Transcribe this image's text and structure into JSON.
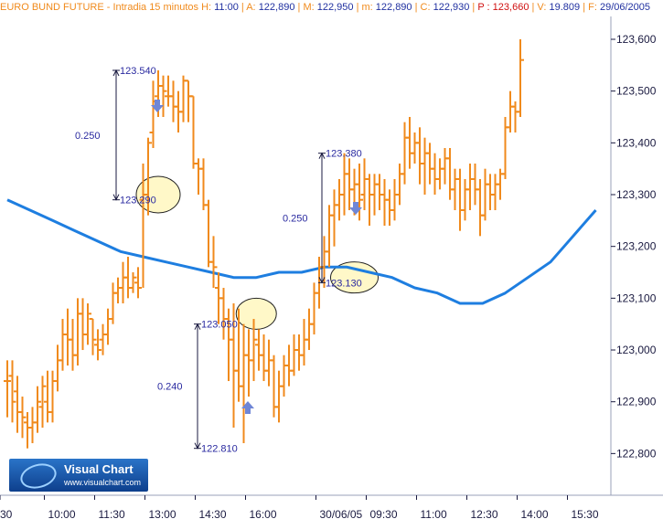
{
  "header": {
    "instrument": "EURO BUND FUTURE - Intradia 15 minutos",
    "h_label": "H:",
    "h_value": "11:00",
    "a_label": "A:",
    "a_value": "122,890",
    "m_label": "M:",
    "m_value": "122,950",
    "min_label": "m:",
    "min_value": "122,890",
    "c_label": "C:",
    "c_value": "122,930",
    "p_label": "P :",
    "p_value": "123,660",
    "v_label": "V:",
    "v_value": "19.809",
    "f_label": "F:",
    "f_value": "29/06/2005"
  },
  "logo": {
    "title": "Visual Chart",
    "url": "www.visualchart.com"
  },
  "colors": {
    "bars": "#f08a1c",
    "average": "#1e7ee0",
    "annotation": "#2a2aa0",
    "arrow": "#6f86d6",
    "highlight": "#fff8c8"
  },
  "chart_data": {
    "type": "bar",
    "subtype": "ohlc",
    "ylim": [
      122.74,
      123.65
    ],
    "yticks": [
      "123,600",
      "123,500",
      "123,400",
      "123,300",
      "123,200",
      "123,100",
      "123,000",
      "122,900",
      "122,800"
    ],
    "ytick_values": [
      123.6,
      123.5,
      123.4,
      123.3,
      123.2,
      123.1,
      123.0,
      122.9,
      122.8
    ],
    "xticks": [
      {
        "label": "30",
        "bar": -1
      },
      {
        "label": "10:00",
        "bar": 7
      },
      {
        "label": "11:30",
        "bar": 17
      },
      {
        "label": "13:00",
        "bar": 27
      },
      {
        "label": "14:30",
        "bar": 37
      },
      {
        "label": "16:00",
        "bar": 47
      },
      {
        "label": "30/06/05",
        "bar": 61
      },
      {
        "label": "09:30",
        "bar": 71
      },
      {
        "label": "11:00",
        "bar": 81
      },
      {
        "label": "12:30",
        "bar": 91
      },
      {
        "label": "14:00",
        "bar": 101
      },
      {
        "label": "15:30",
        "bar": 111
      }
    ],
    "ohlc": [
      [
        122.94,
        122.98,
        122.87,
        122.94
      ],
      [
        122.95,
        122.98,
        122.86,
        122.9
      ],
      [
        122.92,
        122.95,
        122.84,
        122.88
      ],
      [
        122.88,
        122.91,
        122.83,
        122.87
      ],
      [
        122.86,
        122.88,
        122.81,
        122.85
      ],
      [
        122.85,
        122.89,
        122.82,
        122.86
      ],
      [
        122.86,
        122.93,
        122.84,
        122.9
      ],
      [
        122.89,
        122.95,
        122.85,
        122.93
      ],
      [
        122.9,
        122.96,
        122.86,
        122.88
      ],
      [
        122.88,
        122.96,
        122.86,
        122.94
      ],
      [
        122.94,
        123.01,
        122.92,
        122.98
      ],
      [
        122.98,
        123.06,
        122.96,
        123.03
      ],
      [
        123.03,
        123.08,
        122.97,
        123.02
      ],
      [
        123.02,
        123.06,
        122.96,
        122.99
      ],
      [
        122.99,
        123.1,
        122.97,
        123.07
      ],
      [
        123.07,
        123.1,
        123.0,
        123.03
      ],
      [
        123.03,
        123.09,
        123.01,
        123.07
      ],
      [
        123.06,
        123.06,
        122.99,
        123.02
      ],
      [
        123.01,
        123.04,
        122.98,
        123.0
      ],
      [
        123.02,
        123.05,
        122.99,
        123.03
      ],
      [
        123.03,
        123.08,
        123.01,
        123.06
      ],
      [
        123.06,
        123.13,
        123.05,
        123.11
      ],
      [
        123.11,
        123.14,
        123.09,
        123.12
      ],
      [
        123.12,
        123.17,
        123.09,
        123.14
      ],
      [
        123.14,
        123.18,
        123.1,
        123.12
      ],
      [
        123.12,
        123.15,
        123.11,
        123.14
      ],
      [
        123.13,
        123.16,
        123.1,
        123.12
      ],
      [
        123.29,
        123.36,
        123.12,
        123.3
      ],
      [
        123.3,
        123.41,
        123.26,
        123.4
      ],
      [
        123.42,
        123.52,
        123.39,
        123.48
      ],
      [
        123.49,
        123.54,
        123.45,
        123.51
      ],
      [
        123.51,
        123.53,
        123.45,
        123.5
      ],
      [
        123.49,
        123.53,
        123.47,
        123.49
      ],
      [
        123.49,
        123.52,
        123.44,
        123.47
      ],
      [
        123.47,
        123.5,
        123.42,
        123.46
      ],
      [
        123.46,
        123.53,
        123.44,
        123.52
      ],
      [
        123.52,
        123.52,
        123.44,
        123.49
      ],
      [
        123.49,
        123.49,
        123.35,
        123.36
      ],
      [
        123.36,
        123.37,
        123.3,
        123.35
      ],
      [
        123.35,
        123.37,
        123.27,
        123.28
      ],
      [
        123.28,
        123.29,
        123.16,
        123.17
      ],
      [
        123.17,
        123.22,
        123.12,
        123.16
      ],
      [
        123.12,
        123.15,
        123.05,
        123.1
      ],
      [
        123.1,
        123.12,
        123.02,
        123.06
      ],
      [
        123.06,
        123.08,
        122.94,
        123.02
      ],
      [
        123.02,
        123.09,
        122.85,
        122.96
      ],
      [
        122.96,
        123.08,
        122.9,
        122.93
      ],
      [
        122.93,
        123.05,
        122.82,
        122.99
      ],
      [
        122.99,
        123.04,
        122.91,
        122.98
      ],
      [
        122.98,
        123.06,
        122.94,
        123.02
      ],
      [
        123.01,
        123.04,
        122.96,
        122.99
      ],
      [
        122.99,
        123.03,
        122.94,
        122.96
      ],
      [
        122.96,
        123.02,
        122.93,
        122.98
      ],
      [
        122.98,
        122.99,
        122.87,
        122.89
      ],
      [
        122.89,
        122.96,
        122.86,
        122.93
      ],
      [
        122.93,
        122.99,
        122.91,
        122.97
      ],
      [
        122.97,
        123.01,
        122.93,
        122.96
      ],
      [
        122.96,
        123.03,
        122.95,
        123.0
      ],
      [
        123.0,
        123.03,
        122.96,
        122.99
      ],
      [
        122.99,
        123.06,
        122.97,
        123.02
      ],
      [
        123.02,
        123.08,
        123.0,
        123.05
      ],
      [
        123.05,
        123.13,
        123.03,
        123.11
      ],
      [
        123.11,
        123.18,
        123.08,
        123.16
      ],
      [
        123.16,
        123.22,
        123.12,
        123.19
      ],
      [
        123.19,
        123.28,
        123.16,
        123.26
      ],
      [
        123.26,
        123.31,
        123.2,
        123.28
      ],
      [
        123.28,
        123.33,
        123.25,
        123.3
      ],
      [
        123.3,
        123.38,
        123.26,
        123.34
      ],
      [
        123.34,
        123.37,
        123.27,
        123.31
      ],
      [
        123.31,
        123.35,
        123.26,
        123.32
      ],
      [
        123.32,
        123.36,
        123.25,
        123.29
      ],
      [
        123.3,
        123.37,
        123.27,
        123.33
      ],
      [
        123.33,
        123.34,
        123.24,
        123.3
      ],
      [
        123.3,
        123.34,
        123.26,
        123.32
      ],
      [
        123.32,
        123.34,
        123.27,
        123.3
      ],
      [
        123.3,
        123.33,
        123.24,
        123.29
      ],
      [
        123.29,
        123.31,
        123.24,
        123.27
      ],
      [
        123.27,
        123.33,
        123.25,
        123.3
      ],
      [
        123.3,
        123.36,
        123.28,
        123.34
      ],
      [
        123.34,
        123.44,
        123.32,
        123.41
      ],
      [
        123.41,
        123.45,
        123.35,
        123.38
      ],
      [
        123.38,
        123.42,
        123.36,
        123.4
      ],
      [
        123.4,
        123.43,
        123.32,
        123.36
      ],
      [
        123.36,
        123.41,
        123.3,
        123.38
      ],
      [
        123.38,
        123.4,
        123.32,
        123.35
      ],
      [
        123.35,
        123.38,
        123.3,
        123.33
      ],
      [
        123.33,
        123.37,
        123.31,
        123.35
      ],
      [
        123.35,
        123.39,
        123.32,
        123.37
      ],
      [
        123.37,
        123.39,
        123.29,
        123.31
      ],
      [
        123.31,
        123.35,
        123.27,
        123.33
      ],
      [
        123.33,
        123.35,
        123.23,
        123.27
      ],
      [
        123.27,
        123.33,
        123.25,
        123.31
      ],
      [
        123.31,
        123.36,
        123.27,
        123.33
      ],
      [
        123.33,
        123.36,
        123.28,
        123.31
      ],
      [
        123.31,
        123.33,
        123.22,
        123.26
      ],
      [
        123.26,
        123.35,
        123.25,
        123.32
      ],
      [
        123.32,
        123.34,
        123.27,
        123.3
      ],
      [
        123.3,
        123.34,
        123.27,
        123.32
      ],
      [
        123.32,
        123.35,
        123.29,
        123.34
      ],
      [
        123.34,
        123.45,
        123.33,
        123.43
      ],
      [
        123.43,
        123.5,
        123.42,
        123.47
      ],
      [
        123.47,
        123.48,
        123.42,
        123.46
      ],
      [
        123.46,
        123.6,
        123.45,
        123.56
      ]
    ],
    "moving_average": [
      123.29,
      123.27,
      123.25,
      123.23,
      123.21,
      123.19,
      123.18,
      123.17,
      123.16,
      123.15,
      123.14,
      123.14,
      123.15,
      123.15,
      123.16,
      123.16,
      123.15,
      123.14,
      123.12,
      123.11,
      123.09,
      123.09,
      123.11,
      123.14,
      123.17,
      123.22,
      123.27
    ],
    "annotations": [
      {
        "label": "123.540",
        "value": 123.54
      },
      {
        "label": "123.290",
        "value": 123.29
      },
      {
        "label": "0.250",
        "span": "first"
      },
      {
        "label": "123.050",
        "value": 123.05
      },
      {
        "label": "122.810",
        "value": 122.81
      },
      {
        "label": "0.240",
        "span": "second"
      },
      {
        "label": "123.380",
        "value": 123.38
      },
      {
        "label": "123.130",
        "value": 123.13
      },
      {
        "label": "0.250",
        "span": "third"
      }
    ]
  }
}
